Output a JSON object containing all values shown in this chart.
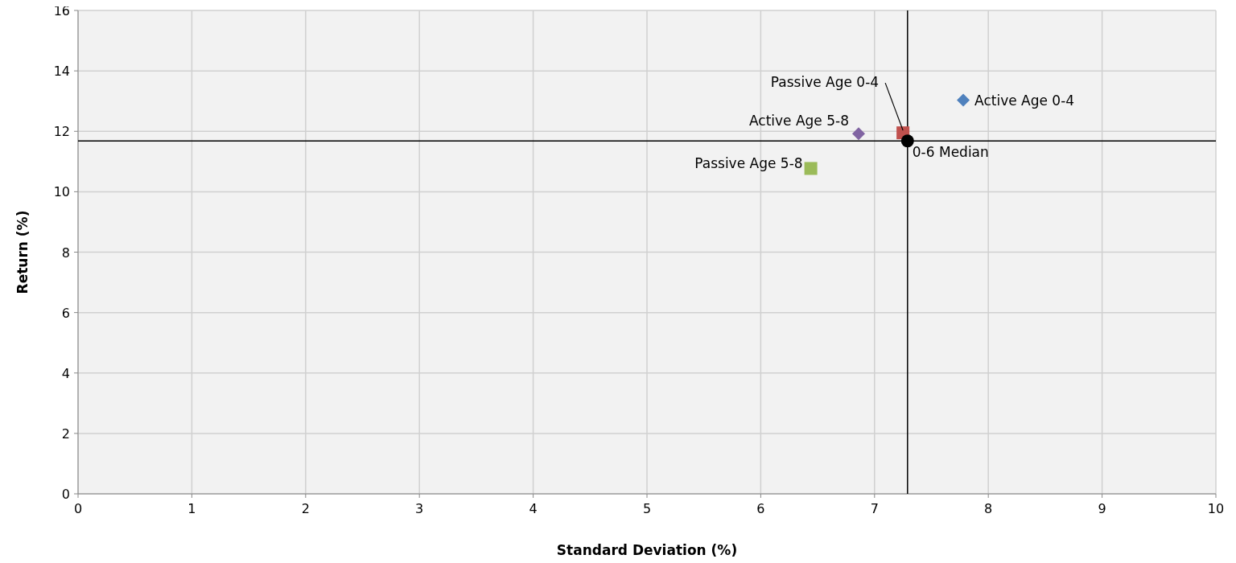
{
  "chart_data": {
    "type": "scatter",
    "xlabel": "Standard Deviation (%)",
    "ylabel": "Return (%)",
    "xlim": [
      0,
      10
    ],
    "xticks": [
      0,
      1,
      2,
      3,
      4,
      5,
      6,
      7,
      8,
      9,
      10
    ],
    "ylim": [
      0,
      16
    ],
    "yticks": [
      0,
      2,
      4,
      6,
      8,
      10,
      12,
      14,
      16
    ],
    "grid": true,
    "series": [
      {
        "name": "Active Age 0-4",
        "color": "#4f81bd",
        "marker": "diamond",
        "x": [
          7.78
        ],
        "values": [
          13.03
        ]
      },
      {
        "name": "Active Age 5-8",
        "color": "#8064a2",
        "marker": "diamond",
        "x": [
          6.86
        ],
        "values": [
          11.92
        ]
      },
      {
        "name": "Passive Age 0-4",
        "color": "#c0504d",
        "marker": "square",
        "x": [
          7.25
        ],
        "values": [
          11.95
        ]
      },
      {
        "name": "Passive Age 5-8",
        "color": "#9bbb59",
        "marker": "square",
        "x": [
          6.44
        ],
        "values": [
          10.77
        ]
      },
      {
        "name": "0-6 Median",
        "color": "#000000",
        "marker": "circle",
        "x": [
          7.29
        ],
        "values": [
          11.68
        ]
      }
    ],
    "ref_lines": [
      {
        "axis": "x",
        "value": 7.29,
        "color": "#000000"
      },
      {
        "axis": "y",
        "value": 11.68,
        "color": "#000000"
      }
    ]
  }
}
